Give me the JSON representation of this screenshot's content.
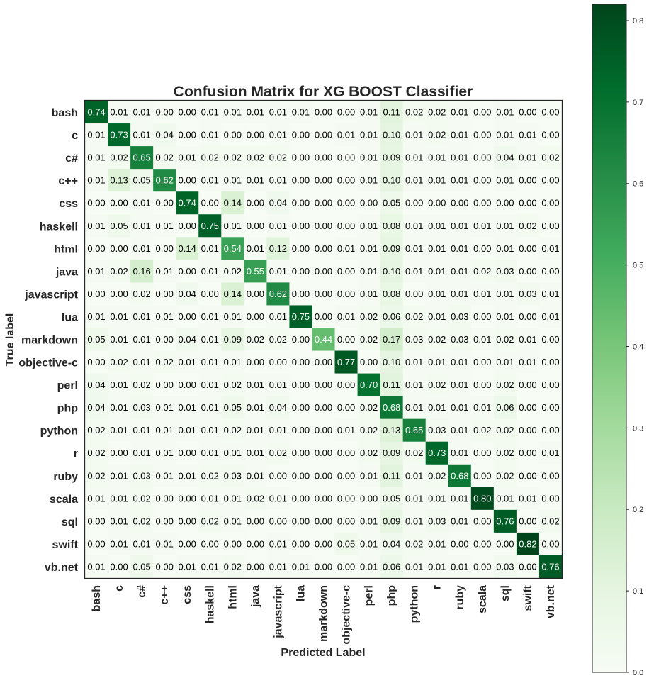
{
  "chart_data": {
    "type": "heatmap",
    "title": "Confusion Matrix for XG BOOST Classifier",
    "xlabel": "Predicted Label",
    "ylabel": "True label",
    "labels": [
      "bash",
      "c",
      "c#",
      "c++",
      "css",
      "haskell",
      "html",
      "java",
      "javascript",
      "lua",
      "markdown",
      "objective-c",
      "perl",
      "php",
      "python",
      "r",
      "ruby",
      "scala",
      "sql",
      "swift",
      "vb.net"
    ],
    "matrix": [
      [
        "0.74",
        "0.01",
        "0.01",
        "0.00",
        "0.00",
        "0.01",
        "0.01",
        "0.01",
        "0.01",
        "0.01",
        "0.00",
        "0.00",
        "0.01",
        "0.11",
        "0.02",
        "0.02",
        "0.01",
        "0.00",
        "0.01",
        "0.00",
        "0.00"
      ],
      [
        "0.01",
        "0.73",
        "0.01",
        "0.04",
        "0.00",
        "0.01",
        "0.00",
        "0.00",
        "0.01",
        "0.00",
        "0.00",
        "0.01",
        "0.01",
        "0.10",
        "0.01",
        "0.02",
        "0.01",
        "0.00",
        "0.01",
        "0.01",
        "0.00"
      ],
      [
        "0.01",
        "0.02",
        "0.65",
        "0.02",
        "0.01",
        "0.02",
        "0.02",
        "0.02",
        "0.02",
        "0.00",
        "0.00",
        "0.00",
        "0.01",
        "0.09",
        "0.01",
        "0.01",
        "0.01",
        "0.00",
        "0.04",
        "0.01",
        "0.02"
      ],
      [
        "0.01",
        "0.13",
        "0.05",
        "0.62",
        "0.00",
        "0.01",
        "0.01",
        "0.01",
        "0.01",
        "0.00",
        "0.00",
        "0.00",
        "0.01",
        "0.10",
        "0.01",
        "0.01",
        "0.01",
        "0.00",
        "0.01",
        "0.00",
        "0.00"
      ],
      [
        "0.00",
        "0.00",
        "0.01",
        "0.00",
        "0.74",
        "0.00",
        "0.14",
        "0.00",
        "0.04",
        "0.00",
        "0.00",
        "0.00",
        "0.00",
        "0.05",
        "0.00",
        "0.00",
        "0.00",
        "0.00",
        "0.00",
        "0.00",
        "0.00"
      ],
      [
        "0.01",
        "0.05",
        "0.01",
        "0.01",
        "0.00",
        "0.75",
        "0.01",
        "0.00",
        "0.01",
        "0.00",
        "0.00",
        "0.00",
        "0.01",
        "0.08",
        "0.01",
        "0.01",
        "0.01",
        "0.01",
        "0.01",
        "0.02",
        "0.00"
      ],
      [
        "0.00",
        "0.00",
        "0.01",
        "0.00",
        "0.14",
        "0.01",
        "0.54",
        "0.01",
        "0.12",
        "0.00",
        "0.00",
        "0.01",
        "0.01",
        "0.09",
        "0.01",
        "0.01",
        "0.01",
        "0.00",
        "0.01",
        "0.00",
        "0.01"
      ],
      [
        "0.01",
        "0.02",
        "0.16",
        "0.01",
        "0.00",
        "0.01",
        "0.02",
        "0.55",
        "0.01",
        "0.00",
        "0.00",
        "0.00",
        "0.01",
        "0.10",
        "0.01",
        "0.01",
        "0.01",
        "0.02",
        "0.03",
        "0.00",
        "0.00"
      ],
      [
        "0.00",
        "0.00",
        "0.02",
        "0.00",
        "0.04",
        "0.00",
        "0.14",
        "0.00",
        "0.62",
        "0.00",
        "0.00",
        "0.00",
        "0.01",
        "0.08",
        "0.00",
        "0.01",
        "0.01",
        "0.01",
        "0.01",
        "0.03",
        "0.01"
      ],
      [
        "0.01",
        "0.01",
        "0.01",
        "0.01",
        "0.00",
        "0.01",
        "0.01",
        "0.00",
        "0.01",
        "0.75",
        "0.00",
        "0.01",
        "0.02",
        "0.06",
        "0.02",
        "0.01",
        "0.03",
        "0.00",
        "0.01",
        "0.00",
        "0.01"
      ],
      [
        "0.05",
        "0.01",
        "0.01",
        "0.00",
        "0.04",
        "0.01",
        "0.09",
        "0.02",
        "0.02",
        "0.00",
        "0.44",
        "0.00",
        "0.02",
        "0.17",
        "0.03",
        "0.02",
        "0.03",
        "0.01",
        "0.02",
        "0.01",
        "0.00"
      ],
      [
        "0.00",
        "0.02",
        "0.01",
        "0.02",
        "0.01",
        "0.01",
        "0.01",
        "0.00",
        "0.00",
        "0.00",
        "0.00",
        "0.77",
        "0.00",
        "0.10",
        "0.01",
        "0.01",
        "0.01",
        "0.00",
        "0.01",
        "0.01",
        "0.00"
      ],
      [
        "0.04",
        "0.01",
        "0.02",
        "0.00",
        "0.00",
        "0.01",
        "0.02",
        "0.01",
        "0.01",
        "0.00",
        "0.00",
        "0.00",
        "0.70",
        "0.11",
        "0.01",
        "0.02",
        "0.01",
        "0.00",
        "0.02",
        "0.00",
        "0.00"
      ],
      [
        "0.04",
        "0.01",
        "0.03",
        "0.01",
        "0.01",
        "0.01",
        "0.05",
        "0.01",
        "0.04",
        "0.00",
        "0.00",
        "0.00",
        "0.02",
        "0.68",
        "0.01",
        "0.01",
        "0.01",
        "0.01",
        "0.06",
        "0.00",
        "0.00"
      ],
      [
        "0.02",
        "0.01",
        "0.01",
        "0.01",
        "0.01",
        "0.01",
        "0.02",
        "0.01",
        "0.01",
        "0.00",
        "0.00",
        "0.01",
        "0.02",
        "0.13",
        "0.65",
        "0.03",
        "0.01",
        "0.02",
        "0.02",
        "0.00",
        "0.00"
      ],
      [
        "0.02",
        "0.00",
        "0.01",
        "0.01",
        "0.00",
        "0.01",
        "0.01",
        "0.01",
        "0.02",
        "0.00",
        "0.00",
        "0.00",
        "0.02",
        "0.09",
        "0.02",
        "0.73",
        "0.01",
        "0.00",
        "0.02",
        "0.00",
        "0.01"
      ],
      [
        "0.02",
        "0.01",
        "0.03",
        "0.01",
        "0.01",
        "0.02",
        "0.03",
        "0.01",
        "0.00",
        "0.00",
        "0.00",
        "0.00",
        "0.01",
        "0.11",
        "0.01",
        "0.02",
        "0.68",
        "0.00",
        "0.02",
        "0.00",
        "0.00"
      ],
      [
        "0.01",
        "0.01",
        "0.02",
        "0.00",
        "0.00",
        "0.01",
        "0.01",
        "0.02",
        "0.01",
        "0.00",
        "0.00",
        "0.00",
        "0.00",
        "0.05",
        "0.01",
        "0.01",
        "0.01",
        "0.80",
        "0.01",
        "0.01",
        "0.00"
      ],
      [
        "0.00",
        "0.01",
        "0.02",
        "0.00",
        "0.00",
        "0.02",
        "0.01",
        "0.00",
        "0.00",
        "0.00",
        "0.00",
        "0.00",
        "0.01",
        "0.09",
        "0.01",
        "0.03",
        "0.01",
        "0.00",
        "0.76",
        "0.00",
        "0.02"
      ],
      [
        "0.00",
        "0.01",
        "0.01",
        "0.01",
        "0.00",
        "0.00",
        "0.00",
        "0.00",
        "0.01",
        "0.00",
        "0.00",
        "0.05",
        "0.01",
        "0.04",
        "0.02",
        "0.01",
        "0.00",
        "0.00",
        "0.00",
        "0.82",
        "0.00"
      ],
      [
        "0.01",
        "0.00",
        "0.05",
        "0.00",
        "0.01",
        "0.01",
        "0.02",
        "0.00",
        "0.01",
        "0.01",
        "0.00",
        "0.00",
        "0.01",
        "0.06",
        "0.01",
        "0.01",
        "0.01",
        "0.00",
        "0.03",
        "0.00",
        "0.76"
      ]
    ],
    "colorbar": {
      "range": [
        0.0,
        0.82
      ],
      "ticks": [
        "0.0",
        "0.1",
        "0.2",
        "0.3",
        "0.4",
        "0.5",
        "0.6",
        "0.7",
        "0.8"
      ]
    },
    "colormap": "Greens",
    "grid": false
  }
}
